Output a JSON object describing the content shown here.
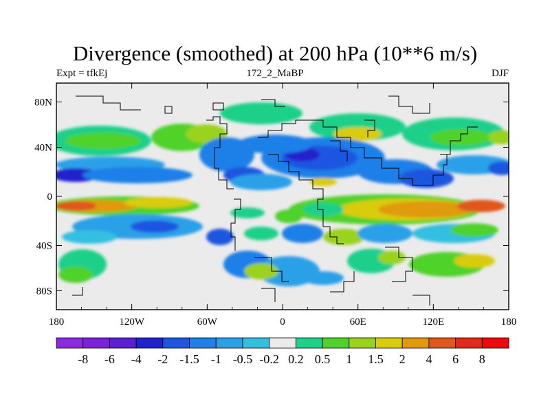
{
  "title": "Divergence (smoothed) at 200 hPa (10**6 m/s)",
  "left_string": "Expt = tfkEj",
  "center_string": "172_2_MaBP",
  "right_string": "DJF",
  "lon_ticks": [
    "180",
    "120W",
    "60W",
    "0",
    "60E",
    "120E",
    "180"
  ],
  "lat_ticks": [
    "80N",
    "40N",
    "0",
    "40S",
    "80S"
  ],
  "colorbar": {
    "colors": [
      "#8a2be2",
      "#7b22d8",
      "#5a20d0",
      "#2222cc",
      "#1e56e0",
      "#1f80e8",
      "#2aa0e8",
      "#33bfe0",
      "#ebebeb",
      "#1fd08a",
      "#4fd22a",
      "#9ad21e",
      "#d8cc10",
      "#e09a10",
      "#e0561c",
      "#e22a1a",
      "#ee0a0a"
    ],
    "labels": [
      "-8",
      "-6",
      "-4",
      "-2",
      "-1.5",
      "-1",
      "-0.5",
      "-0.2",
      "0.2",
      "0.5",
      "1",
      "1.5",
      "2",
      "4",
      "6",
      "8"
    ]
  },
  "map_fill": {
    "background": "#ebebeb"
  }
}
